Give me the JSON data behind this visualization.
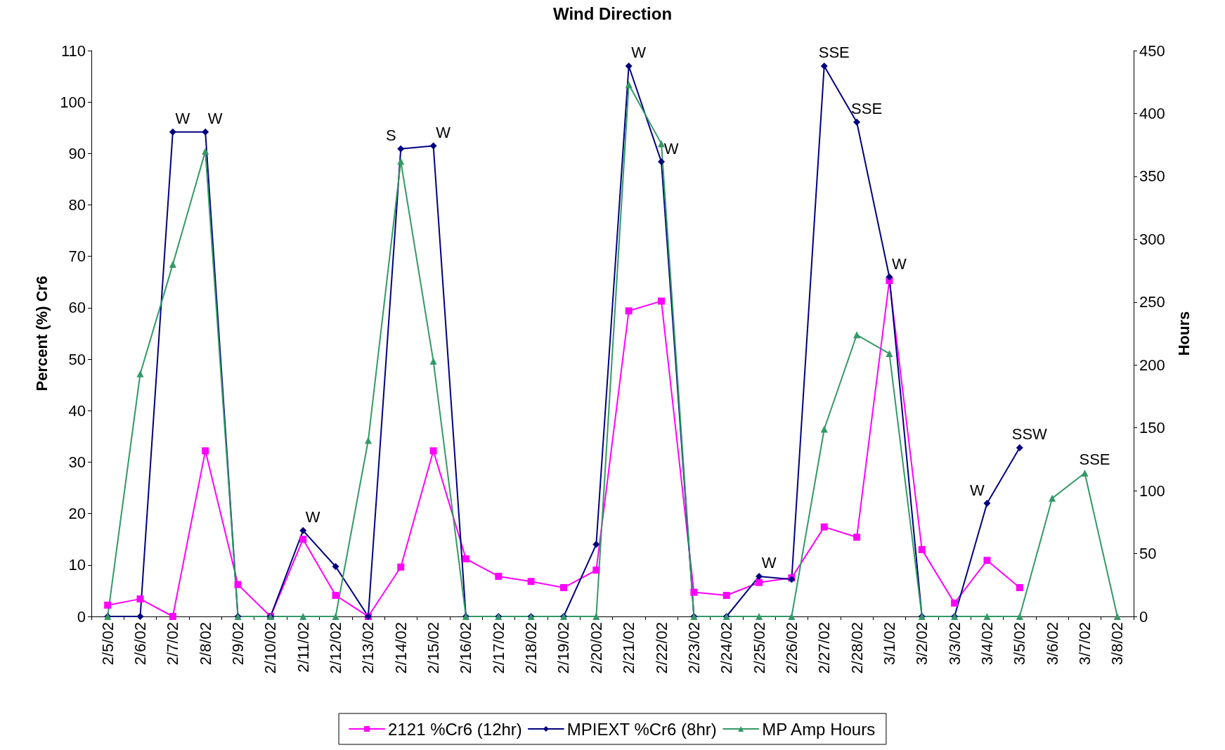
{
  "chart_data": {
    "type": "line",
    "title": "Wind Direction",
    "ylabel": "Percent (%) Cr6",
    "y2label": "Hours",
    "categories": [
      "2/5/02",
      "2/6/02",
      "2/7/02",
      "2/8/02",
      "2/9/02",
      "2/10/02",
      "2/11/02",
      "2/12/02",
      "2/13/02",
      "2/14/02",
      "2/15/02",
      "2/16/02",
      "2/17/02",
      "2/18/02",
      "2/19/02",
      "2/20/02",
      "2/21/02",
      "2/22/02",
      "2/23/02",
      "2/24/02",
      "2/25/02",
      "2/26/02",
      "2/27/02",
      "2/28/02",
      "3/1/02",
      "3/2/02",
      "3/3/02",
      "3/4/02",
      "3/5/02",
      "3/6/02",
      "3/7/02",
      "3/8/02"
    ],
    "ylim": [
      0,
      110
    ],
    "yticks": [
      0,
      10,
      20,
      30,
      40,
      50,
      60,
      70,
      80,
      90,
      100,
      110
    ],
    "y2lim": [
      0,
      450
    ],
    "y2ticks": [
      0,
      50,
      100,
      150,
      200,
      250,
      300,
      350,
      400,
      450
    ],
    "grid": false,
    "legend": "bottom",
    "series": [
      {
        "name": "2121 %Cr6 (12hr)",
        "color": "#ff00ff",
        "marker": "square",
        "values": [
          2.2,
          3.4,
          0,
          32.2,
          6.2,
          0,
          15,
          4.1,
          0,
          9.6,
          32.2,
          11.2,
          7.8,
          6.8,
          5.6,
          9,
          59.4,
          61.3,
          4.7,
          4.1,
          6.6,
          7.5,
          17.4,
          15.4,
          65.3,
          13,
          2.6,
          10.9,
          5.6,
          null,
          null,
          null
        ]
      },
      {
        "name": "MPIEXT %Cr6 (8hr)",
        "color": "#000080",
        "marker": "diamond",
        "values": [
          0,
          0,
          94.2,
          94.2,
          0,
          0,
          16.7,
          9.7,
          0,
          90.9,
          91.5,
          0,
          0,
          0,
          0,
          14,
          107,
          88.4,
          0,
          0,
          7.8,
          7.2,
          107,
          96.1,
          66,
          0,
          0,
          22,
          32.8,
          null,
          null,
          null
        ]
      },
      {
        "name": "MP Amp Hours",
        "color": "#339966",
        "marker": "triangle",
        "axis": "y2",
        "values": [
          0,
          193,
          280,
          370,
          0,
          0,
          0,
          0,
          140,
          362,
          203,
          0,
          0,
          0,
          0,
          0,
          423,
          376,
          0,
          0,
          0,
          0,
          149,
          224,
          209,
          0,
          0,
          0,
          0,
          94,
          114,
          0
        ]
      }
    ],
    "annotations": [
      {
        "text": "W",
        "x": "2/7/02",
        "y": 94.2
      },
      {
        "text": "W",
        "x": "2/8/02",
        "y": 94.2
      },
      {
        "text": "W",
        "x": "2/11/02",
        "y": 16.7
      },
      {
        "text": "S",
        "x": "2/14/02",
        "y": 90.9
      },
      {
        "text": "W",
        "x": "2/15/02",
        "y": 91.5
      },
      {
        "text": "W",
        "x": "2/21/02",
        "y": 107
      },
      {
        "text": "W",
        "x": "2/22/02",
        "y": 88.4
      },
      {
        "text": "W",
        "x": "2/25/02",
        "y": 7.8
      },
      {
        "text": "SSE",
        "x": "2/27/02",
        "y": 107
      },
      {
        "text": "SSE",
        "x": "2/28/02",
        "y": 96.1
      },
      {
        "text": "W",
        "x": "3/1/02",
        "y": 66
      },
      {
        "text": "W",
        "x": "3/4/02",
        "y": 22
      },
      {
        "text": "SSW",
        "x": "3/5/02",
        "y": 32.8
      },
      {
        "text": "SSE",
        "x": "3/7/02",
        "y": 27.9
      }
    ]
  }
}
